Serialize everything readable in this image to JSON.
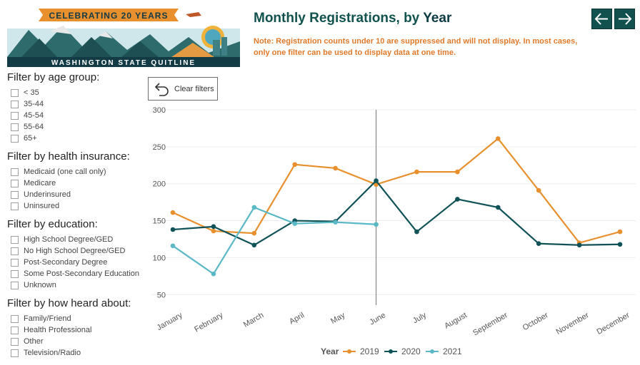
{
  "logo": {
    "banner_text": "CELEBRATING 20 YEARS",
    "footer_text": "WASHINGTON STATE QUITLINE"
  },
  "header": {
    "title_main": "Monthly Registrations, by ",
    "title_emph": "Year",
    "note": "Note: Registration counts under 10 are suppressed and will not display. In most cases, only one filter can be used to display data at one time."
  },
  "clear_filters": {
    "label": "Clear filters"
  },
  "filters": [
    {
      "title": "Filter by age group:",
      "options": [
        "< 35",
        "35-44",
        "45-54",
        "55-64",
        "65+"
      ]
    },
    {
      "title": "Filter by health insurance:",
      "options": [
        "Medicaid (one call only)",
        "Medicare",
        "Underinsured",
        "Uninsured"
      ]
    },
    {
      "title": "Filter by education:",
      "options": [
        "High School Degree/GED",
        "No High School Degree/GED",
        "Post-Secondary Degree",
        "Some Post-Secondary Education",
        "Unknown"
      ]
    },
    {
      "title": "Filter by how heard about:",
      "options": [
        "Family/Friend",
        "Health Professional",
        "Other",
        "Television/Radio"
      ]
    }
  ],
  "colors": {
    "2019": "#e8902e",
    "2020": "#0f5257",
    "2021": "#5bb8c6",
    "title": "#11524f",
    "note": "#e07a2b",
    "nav": "#11524f"
  },
  "chart_data": {
    "type": "line",
    "title": "Monthly Registrations, by Year",
    "xlabel": "",
    "ylabel": "",
    "categories": [
      "January",
      "February",
      "March",
      "April",
      "May",
      "June",
      "July",
      "August",
      "September",
      "October",
      "November",
      "December"
    ],
    "y_ticks": [
      50,
      100,
      150,
      200,
      250,
      300
    ],
    "ylim": [
      30,
      300
    ],
    "grid": true,
    "legend_title": "Year",
    "legend_position": "bottom",
    "series": [
      {
        "name": "2019",
        "values": [
          161,
          136,
          133,
          226,
          221,
          199,
          216,
          216,
          261,
          191,
          120,
          135
        ]
      },
      {
        "name": "2020",
        "values": [
          138,
          142,
          117,
          150,
          149,
          204,
          135,
          179,
          168,
          119,
          117,
          118
        ]
      },
      {
        "name": "2021",
        "values": [
          116,
          78,
          168,
          146,
          148,
          145,
          null,
          null,
          null,
          null,
          null,
          null
        ]
      }
    ],
    "highlight_category": "June"
  }
}
